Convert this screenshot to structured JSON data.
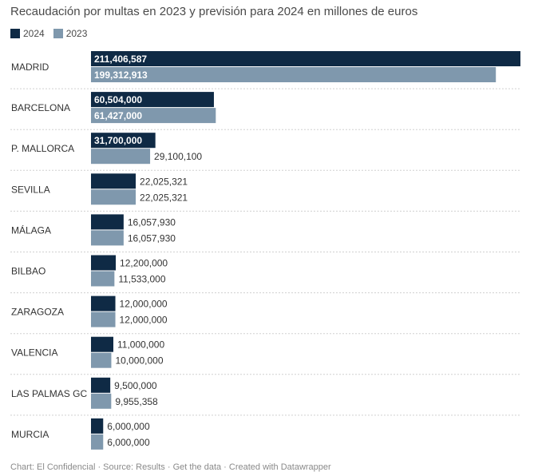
{
  "chart_data": {
    "type": "bar",
    "orientation": "horizontal",
    "title": "Recaudación por multas en 2023 y previsión para 2024 en millones de euros",
    "categories": [
      "MADRID",
      "BARCELONA",
      "P. MALLORCA",
      "SEVILLA",
      "MÁLAGA",
      "BILBAO",
      "ZARAGOZA",
      "VALENCIA",
      "LAS PALMAS GC",
      "MURCIA"
    ],
    "series": [
      {
        "name": "2024",
        "color": "#0f2a45",
        "values": [
          211406587,
          60504000,
          31700000,
          22025321,
          16057930,
          12200000,
          12000000,
          11000000,
          9500000,
          6000000
        ],
        "labels": [
          "211,406,587",
          "60,504,000",
          "31,700,000",
          "22,025,321",
          "16,057,930",
          "12,200,000",
          "12,000,000",
          "11,000,000",
          "9,500,000",
          "6,000,000"
        ]
      },
      {
        "name": "2023",
        "color": "#7f98ad",
        "values": [
          199312913,
          61427000,
          29100100,
          22025321,
          16057930,
          11533000,
          12000000,
          10000000,
          9955358,
          6000000
        ],
        "labels": [
          "199,312,913",
          "61,427,000",
          "29,100,100",
          "22,025,321",
          "16,057,930",
          "11,533,000",
          "12,000,000",
          "10,000,000",
          "9,955,358",
          "6,000,000"
        ]
      }
    ],
    "legend_position": "top-left",
    "grid": false
  },
  "footer": "Chart: El Confidencial · Source: Results · Get the data · Created with Datawrapper"
}
